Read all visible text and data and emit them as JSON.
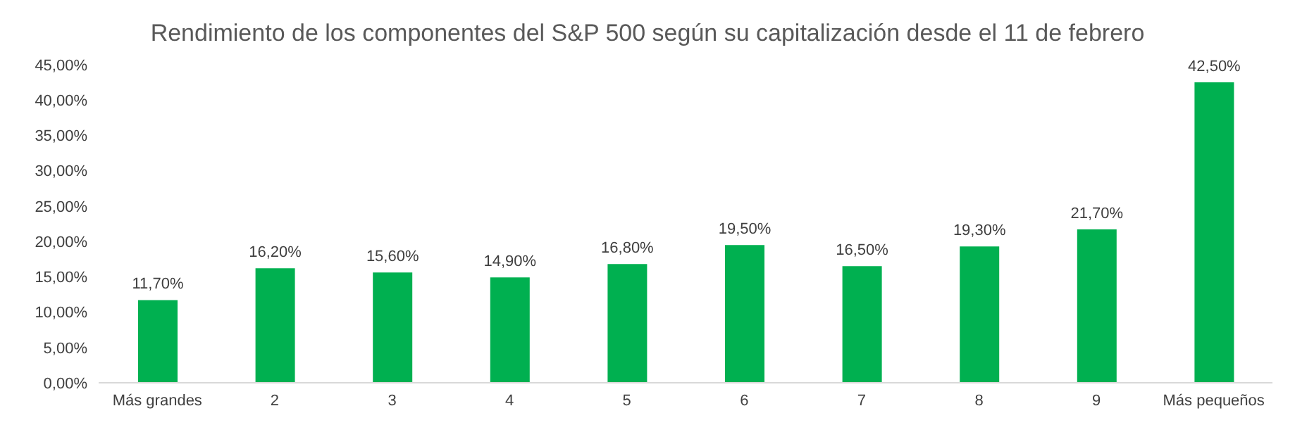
{
  "chart_data": {
    "type": "bar",
    "title": "Rendimiento de los componentes del S&P 500 según su capitalización desde el 11 de febrero",
    "categories": [
      "Más grandes",
      "2",
      "3",
      "4",
      "5",
      "6",
      "7",
      "8",
      "9",
      "Más pequeños"
    ],
    "values": [
      11.7,
      16.2,
      15.6,
      14.9,
      16.8,
      19.5,
      16.5,
      19.3,
      21.7,
      42.5
    ],
    "value_labels": [
      "11,70%",
      "16,20%",
      "15,60%",
      "14,90%",
      "16,80%",
      "19,50%",
      "16,50%",
      "19,30%",
      "21,70%",
      "42,50%"
    ],
    "color": "#00b050",
    "ylim": [
      0,
      45
    ],
    "yticks": [
      {
        "value": 0,
        "label": "0,00%"
      },
      {
        "value": 5,
        "label": "5,00%"
      },
      {
        "value": 10,
        "label": "10,00%"
      },
      {
        "value": 15,
        "label": "15,00%"
      },
      {
        "value": 20,
        "label": "20,00%"
      },
      {
        "value": 25,
        "label": "25,00%"
      },
      {
        "value": 30,
        "label": "30,00%"
      },
      {
        "value": 35,
        "label": "35,00%"
      },
      {
        "value": 40,
        "label": "40,00%"
      },
      {
        "value": 45,
        "label": "45,00%"
      }
    ],
    "grid": false,
    "legend": false
  }
}
